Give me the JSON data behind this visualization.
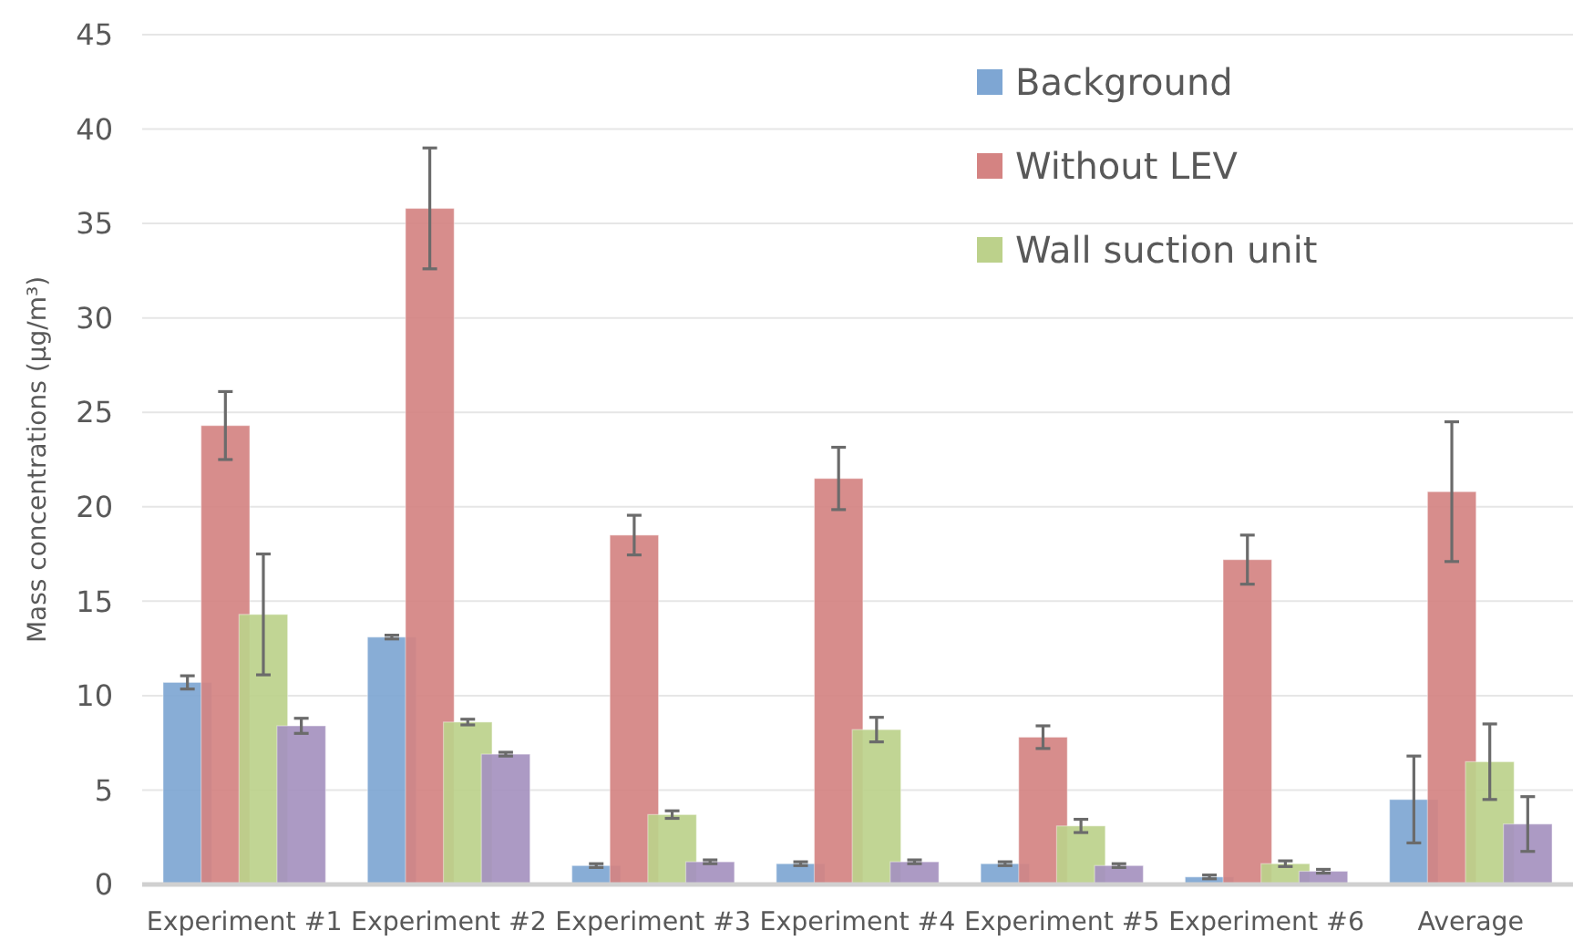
{
  "chart_data": {
    "type": "bar",
    "ylabel": "Mass concentrations (µg/m³)",
    "categories": [
      "Experiment #1",
      "Experiment #2",
      "Experiment #3",
      "Experiment #4",
      "Experiment #5",
      "Experiment #6",
      "Average"
    ],
    "series": [
      {
        "name": "Background",
        "color": "#7ea6d3",
        "values": [
          10.7,
          13.1,
          1.0,
          1.1,
          1.1,
          0.4,
          4.5
        ],
        "errors": [
          0.35,
          0.1,
          0.1,
          0.1,
          0.1,
          0.1,
          2.3
        ]
      },
      {
        "name": "Without LEV",
        "color": "#d48382",
        "values": [
          24.3,
          35.8,
          18.5,
          21.5,
          7.8,
          17.2,
          20.8
        ],
        "errors": [
          1.8,
          3.2,
          1.05,
          1.65,
          0.6,
          1.3,
          3.7
        ]
      },
      {
        "name": "Wall suction unit",
        "color": "#bcd18b",
        "values": [
          14.3,
          8.6,
          3.7,
          8.2,
          3.1,
          1.1,
          6.5
        ],
        "errors": [
          3.2,
          0.15,
          0.2,
          0.65,
          0.35,
          0.15,
          2.0
        ]
      },
      {
        "color": "#a591bf",
        "values": [
          8.4,
          6.9,
          1.2,
          1.2,
          1.0,
          0.7,
          3.2
        ],
        "errors": [
          0.4,
          0.1,
          0.1,
          0.1,
          0.1,
          0.1,
          1.45
        ]
      }
    ],
    "ylim": [
      0,
      45
    ],
    "yticks": [
      0,
      5,
      10,
      15,
      20,
      25,
      30,
      35,
      40,
      45
    ],
    "grid": "y",
    "legend": "top right"
  }
}
